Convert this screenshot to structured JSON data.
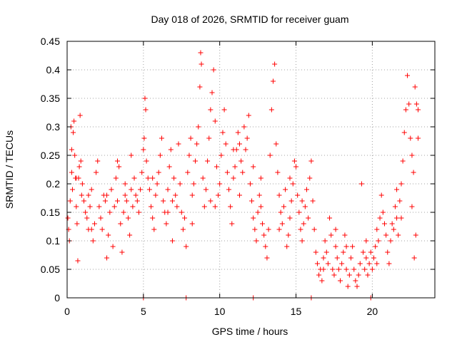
{
  "chart_data": {
    "type": "scatter",
    "title": "Day 018 of 2026, SRMTID for receiver guam",
    "xlabel": "GPS time / hours",
    "ylabel": "SRMTID / TECUs",
    "xlim": [
      0,
      24.1
    ],
    "ylim": [
      0,
      0.45
    ],
    "x_ticks": [
      0,
      5,
      10,
      15,
      20
    ],
    "x_tick_labels": [
      "0",
      "5",
      "10",
      "15",
      "20"
    ],
    "y_ticks": [
      0,
      0.05,
      0.1,
      0.15,
      0.2,
      0.25,
      0.3,
      0.35,
      0.4,
      0.45
    ],
    "y_tick_labels": [
      "0",
      "0.05",
      "0.1",
      "0.15",
      "0.2",
      "0.25",
      "0.3",
      "0.35",
      "0.4",
      "0.45"
    ],
    "grid": true,
    "legend": "none",
    "marker": "plus",
    "colors": {
      "series": "#ff0000",
      "grid": "#a0a0a0",
      "axes": "#000000"
    },
    "series": [
      {
        "name": "SRMTID",
        "points": [
          [
            0.05,
            0.14
          ],
          [
            0.1,
            0.12
          ],
          [
            0.15,
            0.1
          ],
          [
            0.2,
            0.17
          ],
          [
            0.25,
            0.3
          ],
          [
            0.3,
            0.22
          ],
          [
            0.35,
            0.19
          ],
          [
            0.4,
            0.29
          ],
          [
            0.45,
            0.31
          ],
          [
            0.5,
            0.25
          ],
          [
            0.55,
            0.21
          ],
          [
            0.6,
            0.16
          ],
          [
            0.65,
            0.13
          ],
          [
            0.7,
            0.065
          ],
          [
            0.75,
            0.21
          ],
          [
            0.8,
            0.23
          ],
          [
            0.85,
            0.32
          ],
          [
            0.9,
            0.24
          ],
          [
            0.95,
            0.18
          ],
          [
            1.0,
            0.2
          ],
          [
            1.1,
            0.17
          ],
          [
            1.2,
            0.15
          ],
          [
            1.3,
            0.14
          ],
          [
            1.4,
            0.18
          ],
          [
            1.5,
            0.16
          ],
          [
            1.6,
            0.12
          ],
          [
            1.7,
            0.1
          ],
          [
            1.8,
            0.13
          ],
          [
            1.9,
            0.22
          ],
          [
            2.0,
            0.24
          ],
          [
            2.1,
            0.16
          ],
          [
            2.2,
            0.14
          ],
          [
            2.3,
            0.12
          ],
          [
            2.4,
            0.18
          ],
          [
            2.5,
            0.17
          ],
          [
            2.6,
            0.07
          ],
          [
            2.7,
            0.11
          ],
          [
            2.8,
            0.15
          ],
          [
            2.9,
            0.19
          ],
          [
            3.0,
            0.09
          ],
          [
            3.1,
            0.16
          ],
          [
            3.2,
            0.21
          ],
          [
            3.3,
            0.24
          ],
          [
            3.4,
            0.23
          ],
          [
            3.5,
            0.13
          ],
          [
            3.6,
            0.08
          ],
          [
            3.7,
            0.15
          ],
          [
            3.8,
            0.18
          ],
          [
            3.9,
            0.17
          ],
          [
            4.0,
            0.14
          ],
          [
            4.1,
            0.11
          ],
          [
            4.2,
            0.19
          ],
          [
            4.3,
            0.16
          ],
          [
            4.4,
            0.21
          ],
          [
            4.5,
            0.18
          ],
          [
            4.6,
            0.17
          ],
          [
            4.7,
            0.15
          ],
          [
            4.8,
            0.19
          ],
          [
            4.9,
            0.22
          ],
          [
            5.0,
            0.26
          ],
          [
            5.05,
            0.28
          ],
          [
            5.1,
            0.35
          ],
          [
            5.15,
            0.33
          ],
          [
            5.2,
            0.24
          ],
          [
            5.3,
            0.21
          ],
          [
            5.4,
            0.19
          ],
          [
            5.5,
            0.16
          ],
          [
            5.6,
            0.14
          ],
          [
            5.7,
            0.12
          ],
          [
            5.8,
            0.18
          ],
          [
            5.9,
            0.2
          ],
          [
            6.0,
            0.22
          ],
          [
            6.1,
            0.25
          ],
          [
            6.2,
            0.28
          ],
          [
            6.3,
            0.17
          ],
          [
            6.4,
            0.15
          ],
          [
            6.5,
            0.13
          ],
          [
            6.6,
            0.19
          ],
          [
            6.7,
            0.23
          ],
          [
            6.8,
            0.26
          ],
          [
            6.9,
            0.1
          ],
          [
            7.0,
            0.21
          ],
          [
            7.1,
            0.18
          ],
          [
            7.2,
            0.16
          ],
          [
            7.3,
            0.27
          ],
          [
            7.4,
            0.2
          ],
          [
            7.5,
            0.15
          ],
          [
            7.6,
            0.12
          ],
          [
            7.7,
            0.14
          ],
          [
            7.8,
            0.09
          ],
          [
            7.9,
            0.22
          ],
          [
            8.0,
            0.25
          ],
          [
            8.1,
            0.28
          ],
          [
            8.2,
            0.18
          ],
          [
            8.3,
            0.2
          ],
          [
            8.4,
            0.24
          ],
          [
            8.5,
            0.27
          ],
          [
            8.6,
            0.3
          ],
          [
            8.7,
            0.37
          ],
          [
            8.75,
            0.43
          ],
          [
            8.8,
            0.41
          ],
          [
            8.9,
            0.21
          ],
          [
            9.0,
            0.16
          ],
          [
            9.1,
            0.19
          ],
          [
            9.2,
            0.24
          ],
          [
            9.3,
            0.28
          ],
          [
            9.4,
            0.33
          ],
          [
            9.5,
            0.36
          ],
          [
            9.6,
            0.4
          ],
          [
            9.7,
            0.31
          ],
          [
            9.8,
            0.23
          ],
          [
            9.9,
            0.18
          ],
          [
            10.0,
            0.2
          ],
          [
            10.1,
            0.25
          ],
          [
            10.2,
            0.29
          ],
          [
            10.3,
            0.33
          ],
          [
            10.4,
            0.27
          ],
          [
            10.5,
            0.22
          ],
          [
            10.6,
            0.19
          ],
          [
            10.7,
            0.16
          ],
          [
            10.8,
            0.13
          ],
          [
            10.9,
            0.21
          ],
          [
            11.0,
            0.23
          ],
          [
            11.1,
            0.26
          ],
          [
            11.2,
            0.29
          ],
          [
            11.3,
            0.27
          ],
          [
            11.4,
            0.24
          ],
          [
            11.5,
            0.22
          ],
          [
            11.6,
            0.3
          ],
          [
            11.7,
            0.26
          ],
          [
            11.8,
            0.28
          ],
          [
            11.9,
            0.32
          ],
          [
            12.0,
            0.2
          ],
          [
            12.1,
            0.17
          ],
          [
            12.2,
            0.14
          ],
          [
            12.3,
            0.12
          ],
          [
            12.4,
            0.1
          ],
          [
            12.5,
            0.15
          ],
          [
            12.6,
            0.18
          ],
          [
            12.7,
            0.16
          ],
          [
            12.8,
            0.13
          ],
          [
            12.9,
            0.11
          ],
          [
            13.0,
            0.09
          ],
          [
            13.1,
            0.07
          ],
          [
            13.2,
            0.12
          ],
          [
            13.3,
            0.25
          ],
          [
            13.4,
            0.33
          ],
          [
            13.5,
            0.38
          ],
          [
            13.6,
            0.41
          ],
          [
            13.7,
            0.27
          ],
          [
            13.8,
            0.22
          ],
          [
            13.9,
            0.18
          ],
          [
            14.0,
            0.15
          ],
          [
            14.1,
            0.13
          ],
          [
            14.2,
            0.16
          ],
          [
            14.3,
            0.19
          ],
          [
            14.4,
            0.09
          ],
          [
            14.5,
            0.11
          ],
          [
            14.6,
            0.14
          ],
          [
            14.7,
            0.17
          ],
          [
            14.8,
            0.2
          ],
          [
            14.9,
            0.24
          ],
          [
            15.0,
            0.23
          ],
          [
            15.1,
            0.18
          ],
          [
            15.2,
            0.15
          ],
          [
            15.3,
            0.12
          ],
          [
            15.4,
            0.1
          ],
          [
            15.5,
            0.13
          ],
          [
            15.6,
            0.16
          ],
          [
            15.7,
            0.19
          ],
          [
            15.8,
            0.14
          ],
          [
            15.9,
            0.21
          ],
          [
            16.0,
            0.24
          ],
          [
            16.1,
            0.17
          ],
          [
            16.2,
            0.12
          ],
          [
            16.3,
            0.08
          ],
          [
            16.4,
            0.06
          ],
          [
            16.5,
            0.04
          ],
          [
            16.6,
            0.05
          ],
          [
            16.7,
            0.03
          ],
          [
            16.8,
            0.07
          ],
          [
            16.9,
            0.1
          ],
          [
            17.0,
            0.08
          ],
          [
            17.1,
            0.06
          ],
          [
            17.2,
            0.14
          ],
          [
            17.3,
            0.11
          ],
          [
            17.4,
            0.05
          ],
          [
            17.5,
            0.04
          ],
          [
            17.6,
            0.09
          ],
          [
            17.7,
            0.07
          ],
          [
            17.8,
            0.05
          ],
          [
            17.9,
            0.03
          ],
          [
            18.0,
            0.06
          ],
          [
            18.1,
            0.08
          ],
          [
            18.2,
            0.11
          ],
          [
            18.3,
            0.05
          ],
          [
            18.4,
            0.02
          ],
          [
            18.5,
            0.04
          ],
          [
            18.6,
            0.07
          ],
          [
            18.7,
            0.09
          ],
          [
            18.8,
            0.05
          ],
          [
            18.9,
            0.03
          ],
          [
            19.0,
            0.02
          ],
          [
            19.1,
            0.04
          ],
          [
            19.2,
            0.06
          ],
          [
            19.3,
            0.2
          ],
          [
            19.4,
            0.08
          ],
          [
            19.5,
            0.05
          ],
          [
            19.6,
            0.07
          ],
          [
            19.7,
            0.04
          ],
          [
            19.8,
            0.06
          ],
          [
            19.9,
            0.08
          ],
          [
            20.0,
            0.05
          ],
          [
            20.1,
            0.07
          ],
          [
            20.2,
            0.09
          ],
          [
            20.3,
            0.12
          ],
          [
            20.4,
            0.1
          ],
          [
            20.5,
            0.14
          ],
          [
            20.6,
            0.18
          ],
          [
            20.7,
            0.15
          ],
          [
            20.8,
            0.13
          ],
          [
            20.9,
            0.11
          ],
          [
            21.0,
            0.08
          ],
          [
            21.1,
            0.06
          ],
          [
            21.2,
            0.1
          ],
          [
            21.3,
            0.13
          ],
          [
            21.4,
            0.12
          ],
          [
            21.5,
            0.16
          ],
          [
            21.6,
            0.14
          ],
          [
            21.7,
            0.11
          ],
          [
            21.8,
            0.17
          ],
          [
            21.9,
            0.2
          ],
          [
            22.0,
            0.24
          ],
          [
            22.1,
            0.29
          ],
          [
            22.2,
            0.33
          ],
          [
            22.3,
            0.39
          ],
          [
            22.4,
            0.34
          ],
          [
            22.5,
            0.28
          ],
          [
            22.6,
            0.25
          ],
          [
            22.7,
            0.22
          ],
          [
            22.8,
            0.37
          ],
          [
            22.9,
            0.34
          ],
          [
            23.0,
            0.28
          ],
          [
            22.85,
            0.11
          ],
          [
            22.75,
            0.07
          ],
          [
            0.6,
            0.21
          ],
          [
            1.6,
            0.19
          ],
          [
            3.8,
            0.2
          ],
          [
            6.6,
            0.15
          ],
          [
            9.4,
            0.17
          ],
          [
            12.2,
            0.23
          ],
          [
            14.6,
            0.21
          ],
          [
            17.6,
            0.12
          ],
          [
            19.6,
            0.1
          ],
          [
            21.6,
            0.19
          ],
          [
            5.0,
            0.0
          ],
          [
            7.8,
            0.0
          ],
          [
            12.2,
            0.0
          ],
          [
            16.0,
            0.0
          ],
          [
            19.9,
            0.0
          ],
          [
            0.3,
            0.26
          ],
          [
            1.4,
            0.12
          ],
          [
            2.6,
            0.18
          ],
          [
            4.2,
            0.25
          ],
          [
            5.6,
            0.21
          ],
          [
            6.9,
            0.17
          ],
          [
            8.2,
            0.13
          ],
          [
            9.7,
            0.16
          ],
          [
            10.9,
            0.26
          ],
          [
            11.3,
            0.18
          ],
          [
            12.7,
            0.21
          ],
          [
            13.9,
            0.12
          ],
          [
            15.4,
            0.17
          ],
          [
            16.8,
            0.05
          ],
          [
            18.3,
            0.09
          ],
          [
            20.3,
            0.06
          ],
          [
            21.9,
            0.14
          ],
          [
            22.6,
            0.16
          ],
          [
            23.0,
            0.33
          ],
          [
            3.3,
            0.17
          ]
        ]
      }
    ]
  }
}
